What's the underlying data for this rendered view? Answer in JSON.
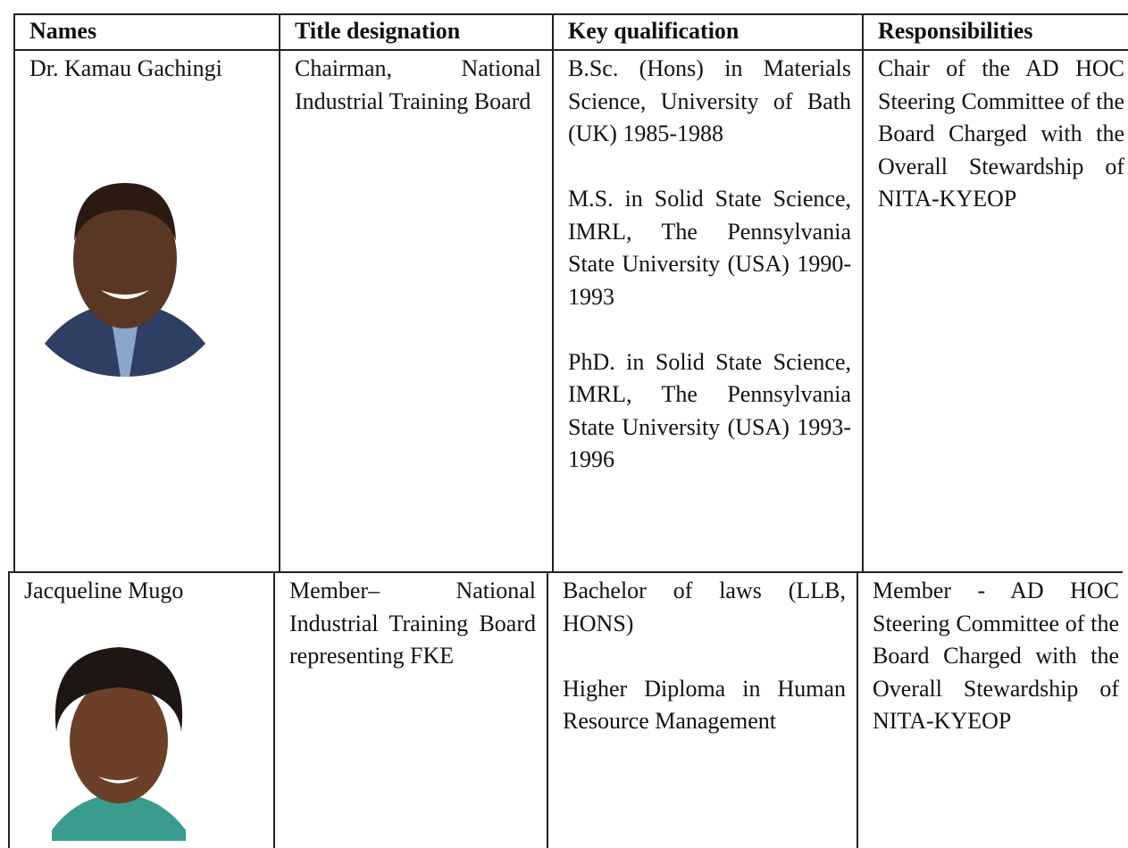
{
  "table": {
    "header": [
      "Names",
      "Title designation",
      "Key qualification",
      "Responsibilities"
    ],
    "rows": [
      {
        "name": "Dr. Kamau Gachingi",
        "title": "Chairman, National Industrial Training Board",
        "qualifications": [
          "B.Sc. (Hons) in Materials Science, University of Bath (UK) 1985-1988",
          "M.S. in Solid State Science, IMRL, The Pennsylvania State University (USA) 1990-1993",
          "PhD. in Solid State Science, IMRL, The Pennsylvania State University (USA) 1993-1996"
        ],
        "responsibilities": "Chair of the AD HOC Steering Committee of the Board Charged with the Overall Stewardship of NITA-KYEOP"
      },
      {
        "name": "Jacqueline Mugo",
        "title": "Member– National Industrial Training Board representing FKE",
        "qualifications": [
          "Bachelor of laws (LLB, HONS)",
          "Higher Diploma in Human Resource Management"
        ],
        "responsibilities": "Member - AD HOC Steering Committee of the Board Charged with the Overall Stewardship of NITA-KYEOP"
      }
    ]
  }
}
